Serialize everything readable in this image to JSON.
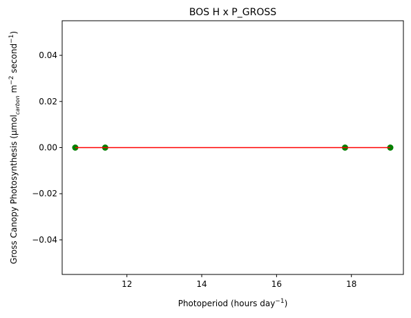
{
  "chart_data": {
    "type": "scatter",
    "title": "BOS H x P_GROSS",
    "xlabel": {
      "base": "Photoperiod (hours day",
      "sup": "−1",
      "tail": ")"
    },
    "ylabel": {
      "base": "Gross Canopy Photosynthesis (µmol",
      "sub": "carbon",
      "mid": " m",
      "sup1": "−2",
      "mid2": " second",
      "sup2": "−1",
      "tail": ")"
    },
    "xlim": [
      10.27,
      19.39
    ],
    "ylim": [
      -0.055,
      0.055
    ],
    "xticks": [
      12,
      14,
      16,
      18
    ],
    "xtick_labels": [
      "12",
      "14",
      "16",
      "18"
    ],
    "yticks": [
      -0.04,
      -0.02,
      0.0,
      0.02,
      0.04
    ],
    "ytick_labels": [
      "−0.04",
      "−0.02",
      "0.00",
      "0.02",
      "0.04"
    ],
    "grid": false,
    "series": [
      {
        "kind": "points",
        "color": "#008000",
        "x": [
          10.62,
          11.42,
          17.83,
          19.04
        ],
        "y": [
          0,
          0,
          0,
          0
        ]
      },
      {
        "kind": "line",
        "color": "#ff0000",
        "x": [
          10.62,
          19.04
        ],
        "y": [
          0,
          0
        ]
      }
    ]
  }
}
